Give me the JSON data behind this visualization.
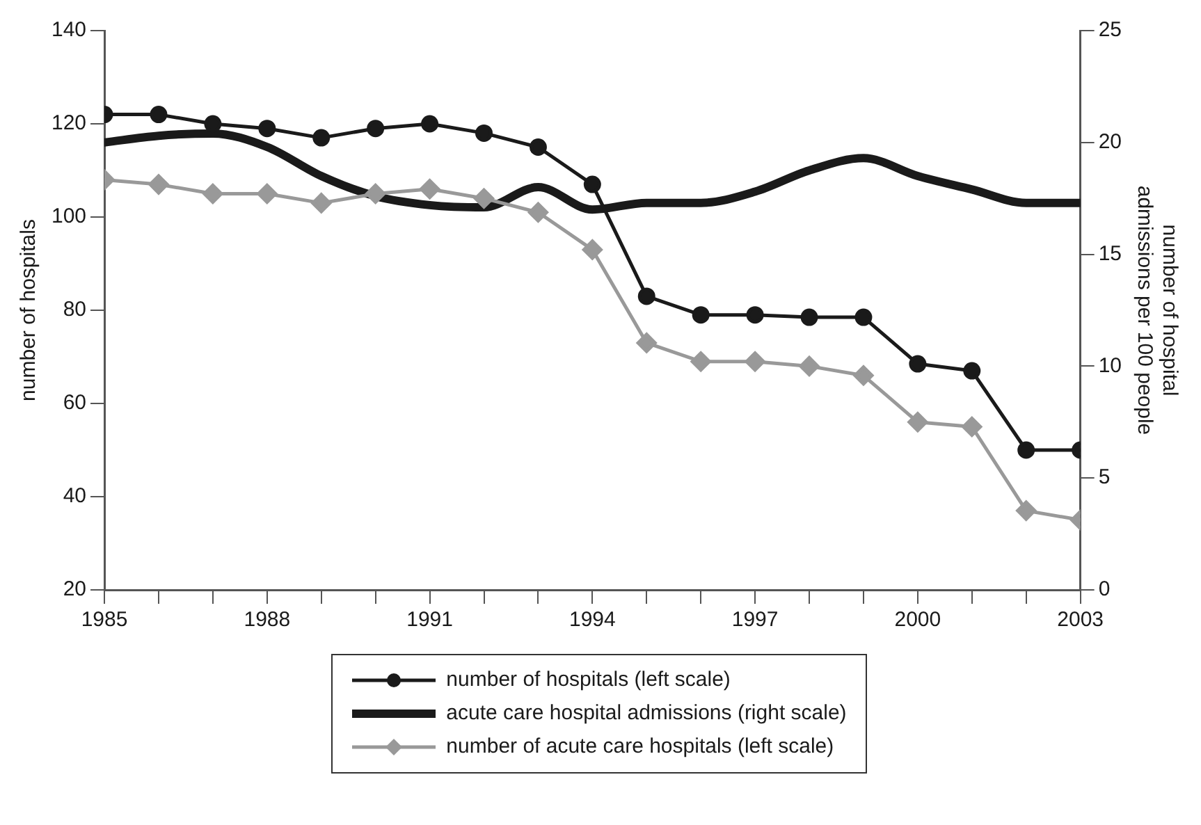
{
  "chart_data": {
    "type": "line",
    "ylabel": "number of hospitals",
    "y2label": "number of hospital admissions per 100 people",
    "x": [
      1985,
      1986,
      1987,
      1988,
      1989,
      1990,
      1991,
      1992,
      1993,
      1994,
      1995,
      1996,
      1997,
      1998,
      1999,
      2000,
      2001,
      2002,
      2003
    ],
    "xlim": [
      1985,
      2003
    ],
    "xticks": [
      1985,
      {
        "value": 1986,
        "label": null
      },
      {
        "value": 1987,
        "label": null
      },
      1988,
      {
        "value": 1989,
        "label": null
      },
      {
        "value": 1990,
        "label": null
      },
      1991,
      {
        "value": 1992,
        "label": null
      },
      {
        "value": 1993,
        "label": null
      },
      1994,
      {
        "value": 1995,
        "label": null
      },
      {
        "value": 1996,
        "label": null
      },
      1997,
      {
        "value": 1998,
        "label": null
      },
      {
        "value": 1999,
        "label": null
      },
      2000,
      {
        "value": 2001,
        "label": null
      },
      {
        "value": 2002,
        "label": null
      },
      2003
    ],
    "ylim": [
      20,
      140
    ],
    "yticks": [
      20,
      40,
      60,
      80,
      100,
      120,
      140
    ],
    "y2lim": [
      0,
      25
    ],
    "y2ticks": [
      0,
      5,
      10,
      15,
      20,
      25
    ],
    "grid": false,
    "legend": "bottom",
    "line_style": "solid",
    "series": [
      {
        "name": "number of hospitals (left scale)",
        "color": "#1a1a1a",
        "marker": "circle",
        "values": [
          122,
          122,
          120,
          119,
          117,
          119,
          120,
          118,
          115,
          107,
          83,
          79,
          79,
          78.5,
          78.5,
          68.5,
          67,
          50,
          50
        ]
      },
      {
        "name": "acute care hospital admissions (right scale)",
        "color": "#1a1a1a",
        "marker": "none",
        "axis": "y2",
        "values": [
          20.0,
          20.3,
          20.4,
          19.8,
          18.5,
          17.6,
          17.2,
          17.1,
          18.0,
          17.0,
          17.3,
          17.3,
          17.8,
          18.75,
          19.3,
          18.5,
          17.9,
          17.3,
          17.3
        ]
      },
      {
        "name": "number of acute care hospitals (left scale)",
        "color": "#999999",
        "marker": "diamond",
        "values": [
          108,
          107,
          105,
          105,
          103,
          105,
          106,
          104,
          101,
          93,
          73,
          69,
          69,
          68,
          66,
          56,
          55,
          37,
          35
        ]
      }
    ]
  }
}
